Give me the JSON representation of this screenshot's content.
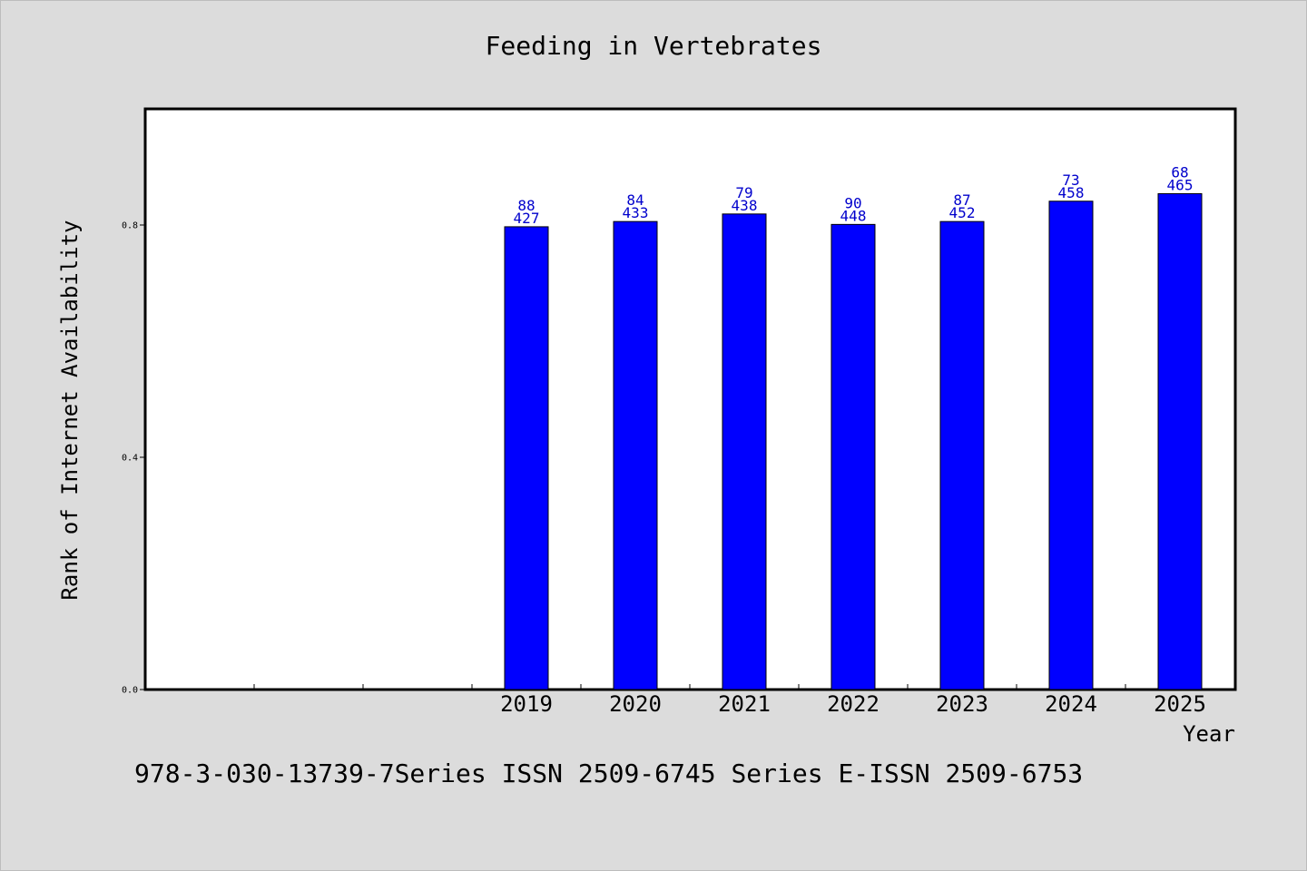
{
  "chart_data": {
    "type": "bar",
    "title": "Feeding in Vertebrates",
    "xlabel": "Year",
    "ylabel": "Rank of Internet Availability",
    "categories": [
      "",
      "",
      "",
      "2019",
      "2020",
      "2021",
      "2022",
      "2023",
      "2024",
      "2025"
    ],
    "series": [
      {
        "values": [
          null,
          null,
          null,
          0.797,
          0.806,
          0.819,
          0.801,
          0.806,
          0.841,
          0.854
        ],
        "labels_top": [
          "",
          "",
          "",
          "88",
          "84",
          "79",
          "90",
          "87",
          "73",
          "68"
        ],
        "labels_bottom": [
          "",
          "",
          "",
          "427",
          "433",
          "438",
          "448",
          "452",
          "458",
          "465"
        ]
      }
    ],
    "ylim": [
      0.0,
      1.0
    ],
    "yticks": [
      0.0,
      0.4,
      0.8
    ],
    "ytick_labels": [
      "0.0",
      "0.4",
      "0.8"
    ],
    "grid": false,
    "colors": {
      "bar": "#0000ff",
      "label": "#0000cc",
      "background": "#dcdcdc"
    }
  },
  "footer": "978-3-030-13739-7Series ISSN 2509-6745 Series E-ISSN 2509-6753"
}
